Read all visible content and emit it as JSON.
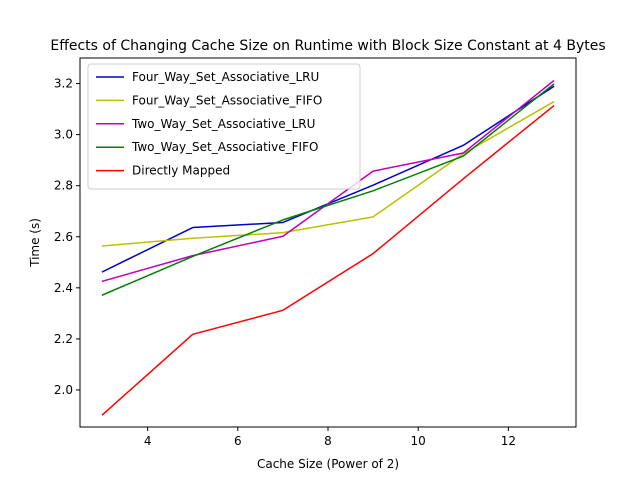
{
  "chart_data": {
    "type": "line",
    "title": "Effects of Changing Cache Size on Runtime with Block Size Constant at 4 Bytes",
    "xlabel": "Cache Size (Power of 2)",
    "ylabel": "Time (s)",
    "xlim": [
      2.5,
      13.5
    ],
    "ylim": [
      1.855,
      3.3
    ],
    "xticks": [
      4,
      6,
      8,
      10,
      12
    ],
    "yticks": [
      2.0,
      2.2,
      2.4,
      2.6,
      2.8,
      3.0,
      3.2
    ],
    "legend_position": "top-left",
    "grid": false,
    "x": [
      3,
      5,
      7,
      9,
      11,
      13
    ],
    "series": [
      {
        "name": "Four_Way_Set_Associative_LRU",
        "color": "#0000cc",
        "values": [
          2.463,
          2.636,
          2.656,
          2.802,
          2.958,
          3.188
        ]
      },
      {
        "name": "Four_Way_Set_Associative_FIFO",
        "color": "#bfbf00",
        "values": [
          2.564,
          2.594,
          2.616,
          2.678,
          2.925,
          3.128
        ]
      },
      {
        "name": "Two_Way_Set_Associative_LRU",
        "color": "#bf00bf",
        "values": [
          2.426,
          2.526,
          2.602,
          2.857,
          2.928,
          3.21
        ]
      },
      {
        "name": "Two_Way_Set_Associative_FIFO",
        "color": "#008000",
        "values": [
          2.372,
          2.523,
          2.666,
          2.78,
          2.916,
          3.197
        ]
      },
      {
        "name": "Directly Mapped",
        "color": "#ff0000",
        "values": [
          1.903,
          2.218,
          2.312,
          2.534,
          2.827,
          3.112
        ]
      }
    ]
  }
}
